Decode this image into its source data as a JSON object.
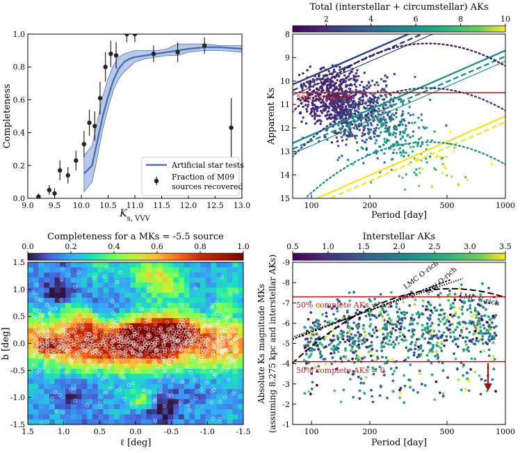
{
  "chart_data": [
    {
      "type": "scatter",
      "panel": "top-left",
      "xlabel": "Ks,VVV",
      "ylabel": "Completeness",
      "xlim": [
        9.0,
        13.0
      ],
      "ylim": [
        0.0,
        1.0
      ],
      "xticks": [
        "9.0",
        "9.5",
        "10.0",
        "10.5",
        "11.0",
        "11.5",
        "12.0",
        "12.5",
        "13.0"
      ],
      "yticks": [
        "0.0",
        "0.2",
        "0.4",
        "0.6",
        "0.8",
        "1.0"
      ],
      "legend": {
        "position": "lower-right",
        "entries": [
          "Artificial star tests",
          "Fraction of M09",
          "sources recovered"
        ]
      },
      "series": [
        {
          "name": "Artificial star tests",
          "x": [
            10.05,
            10.2,
            10.3,
            10.4,
            10.5,
            10.6,
            10.7,
            10.8,
            10.9,
            11.0,
            11.2,
            11.4,
            11.6,
            11.8,
            12.0,
            12.3,
            12.6,
            13.0
          ],
          "y": [
            0.15,
            0.2,
            0.35,
            0.5,
            0.62,
            0.72,
            0.79,
            0.83,
            0.85,
            0.86,
            0.87,
            0.88,
            0.89,
            0.9,
            0.91,
            0.92,
            0.92,
            0.91
          ],
          "lower": [
            0.04,
            0.1,
            0.25,
            0.42,
            0.55,
            0.66,
            0.73,
            0.77,
            0.8,
            0.83,
            0.85,
            0.86,
            0.87,
            0.87,
            0.89,
            0.9,
            0.9,
            0.89
          ],
          "upper": [
            0.26,
            0.32,
            0.47,
            0.62,
            0.73,
            0.81,
            0.86,
            0.88,
            0.89,
            0.9,
            0.9,
            0.9,
            0.91,
            0.94,
            0.94,
            0.94,
            0.93,
            0.93
          ]
        },
        {
          "name": "Fraction of M09 sources recovered",
          "x": [
            9.2,
            9.4,
            9.5,
            9.6,
            9.75,
            9.9,
            10.05,
            10.15,
            10.25,
            10.35,
            10.45,
            10.55,
            10.65,
            10.85,
            11.0,
            11.35,
            11.8,
            12.3,
            12.8
          ],
          "y": [
            0.01,
            0.05,
            0.03,
            0.17,
            0.14,
            0.23,
            0.33,
            0.46,
            0.44,
            0.61,
            0.8,
            0.88,
            0.87,
            1.0,
            1.0,
            0.88,
            0.89,
            0.93,
            0.43
          ],
          "err": [
            0.02,
            0.03,
            0.03,
            0.06,
            0.05,
            0.06,
            0.08,
            0.08,
            0.09,
            0.1,
            0.09,
            0.08,
            0.08,
            0.05,
            0.05,
            0.05,
            0.06,
            0.05,
            0.18
          ]
        }
      ]
    },
    {
      "type": "scatter",
      "panel": "top-right",
      "colorbar_label": "Total (interstellar + circumstellar) AKs",
      "colorbar_ticks": [
        "2",
        "4",
        "6",
        "8",
        "10"
      ],
      "colorbar_range": [
        0.5,
        10
      ],
      "xlabel": "Period [day]",
      "ylabel": "Apparent Ks",
      "xscale": "log",
      "xlim": [
        80,
        1000
      ],
      "ylim": [
        15,
        8
      ],
      "xticks": [
        "100",
        "200",
        "500",
        "1000"
      ],
      "yticks": [
        "8",
        "9",
        "10",
        "11",
        "12",
        "13",
        "14",
        "15"
      ],
      "hline": {
        "y": 10.5,
        "label": "50% complete"
      },
      "n_points": 1200
    },
    {
      "type": "heatmap",
      "panel": "bottom-left",
      "title": "Completeness for a MKs = -5.5 source",
      "colorbar_ticks": [
        "0.0",
        "0.2",
        "0.4",
        "0.6",
        "0.8",
        "1.0"
      ],
      "colorbar_range": [
        0.0,
        1.0
      ],
      "xlabel": "ℓ [deg]",
      "ylabel": "b [deg]",
      "xlim": [
        1.5,
        -1.5
      ],
      "ylim": [
        -1.5,
        1.5
      ],
      "xticks": [
        "1.5",
        "1.0",
        "0.5",
        "0.0",
        "-0.5",
        "-1.0",
        "-1.5"
      ],
      "yticks": [
        "-1.5",
        "-1.0",
        "-0.5",
        "0.0",
        "0.5",
        "1.0",
        "1.5"
      ]
    },
    {
      "type": "scatter",
      "panel": "bottom-right",
      "colorbar_label": "Interstellar AKs",
      "colorbar_ticks": [
        "0.5",
        "1.0",
        "1.5",
        "2.0",
        "2.5",
        "3.0",
        "3.5"
      ],
      "colorbar_range": [
        0.5,
        3.5
      ],
      "xlabel": "Period [day]",
      "ylabel": "Absolute Ks magnitude MKs",
      "ylabel2": "(assuming 8.275 kpc and interstellar AKs)",
      "xscale": "log",
      "xlim": [
        80,
        1000
      ],
      "ylim": [
        -1,
        -9
      ],
      "xticks": [
        "100",
        "200",
        "500",
        "1000"
      ],
      "yticks": [
        "-9",
        "-8",
        "-7",
        "-6",
        "-5",
        "-4",
        "-3",
        "-2",
        "-1"
      ],
      "hlines": [
        {
          "y": -7.3,
          "label": "50% complete AKs = 3.2"
        },
        {
          "y": -4.1,
          "label": "50% complete AKs = 0"
        }
      ],
      "curve_labels": [
        "LMC O-rich",
        "MW O-rich",
        "LMC C-rich"
      ],
      "n_points": 900
    }
  ]
}
